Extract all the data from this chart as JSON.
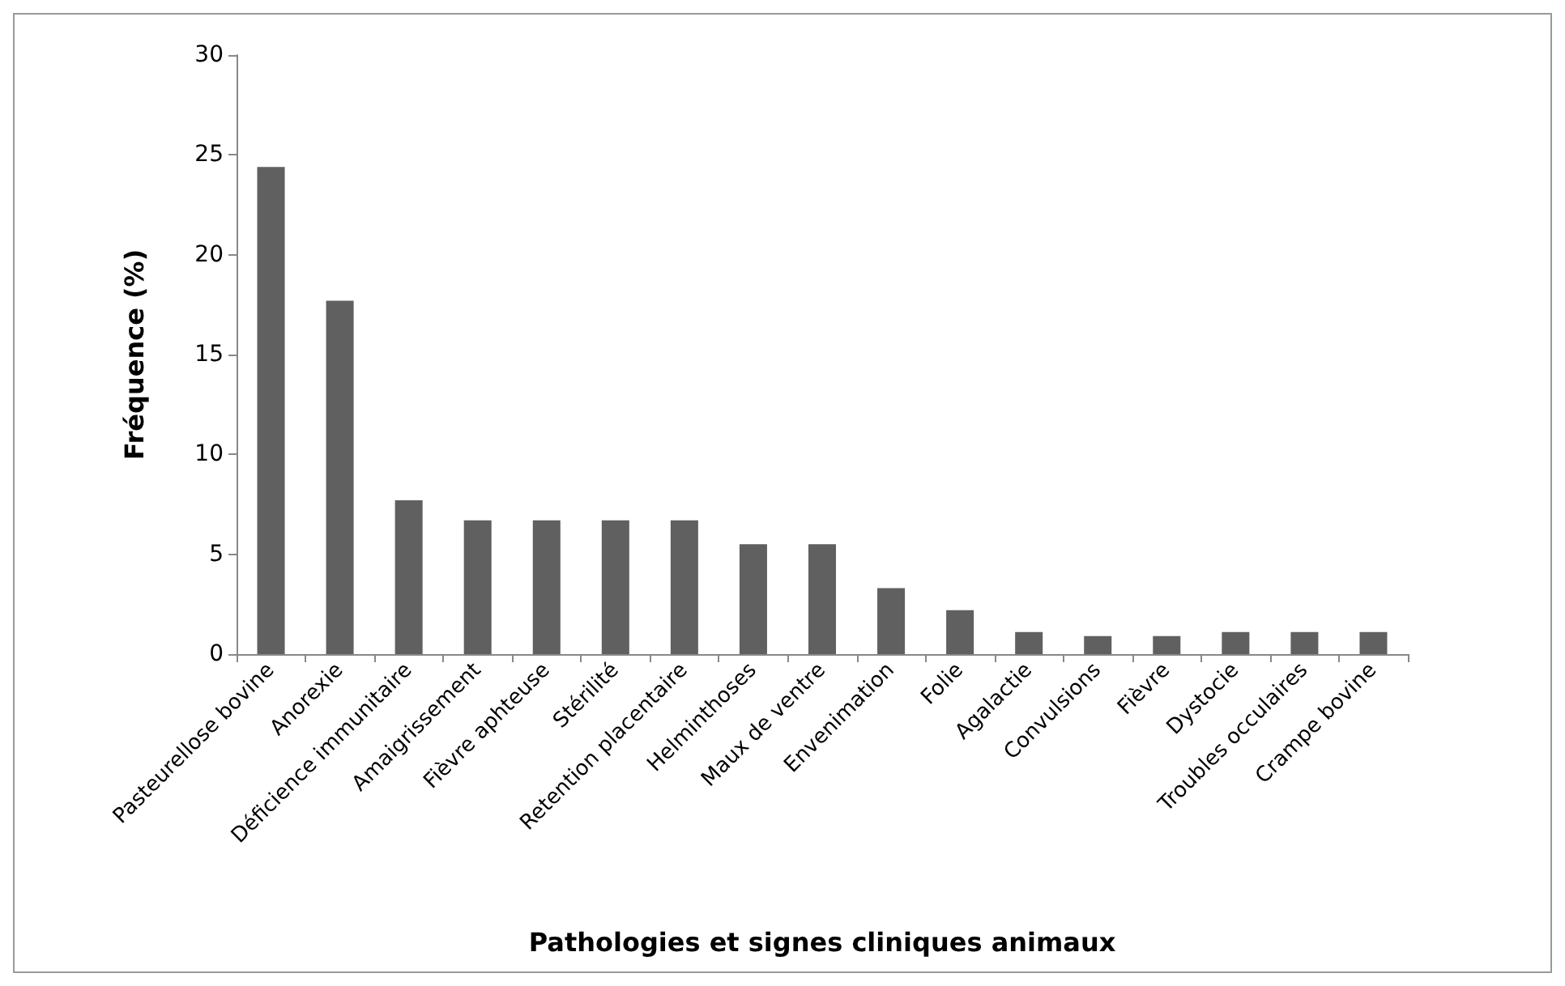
{
  "chart_data": {
    "type": "bar",
    "xlabel": "Pathologies et signes cliniques animaux",
    "ylabel": "Fréquence (%)",
    "categories": [
      "Pasteurellose bovine",
      "Anorexie",
      "Déficience immunitaire",
      "Amaigrissement",
      "Fièvre aphteuse",
      "Stérilité",
      "Retention placentaire",
      "Helminthoses",
      "Maux de ventre",
      "Envenimation",
      "Folie",
      "Agalactie",
      "Convulsions",
      "Fièvre",
      "Dystocie",
      "Troubles occulaires",
      "Crampe bovine"
    ],
    "values": [
      24.4,
      17.7,
      7.7,
      6.7,
      6.7,
      6.7,
      6.7,
      5.5,
      5.5,
      3.3,
      2.2,
      1.1,
      0.9,
      0.9,
      1.1,
      1.1,
      1.1
    ],
    "color": "#606060",
    "ylim": [
      0,
      30
    ],
    "yticks": [
      0,
      5,
      10,
      15,
      20,
      25,
      30
    ]
  }
}
